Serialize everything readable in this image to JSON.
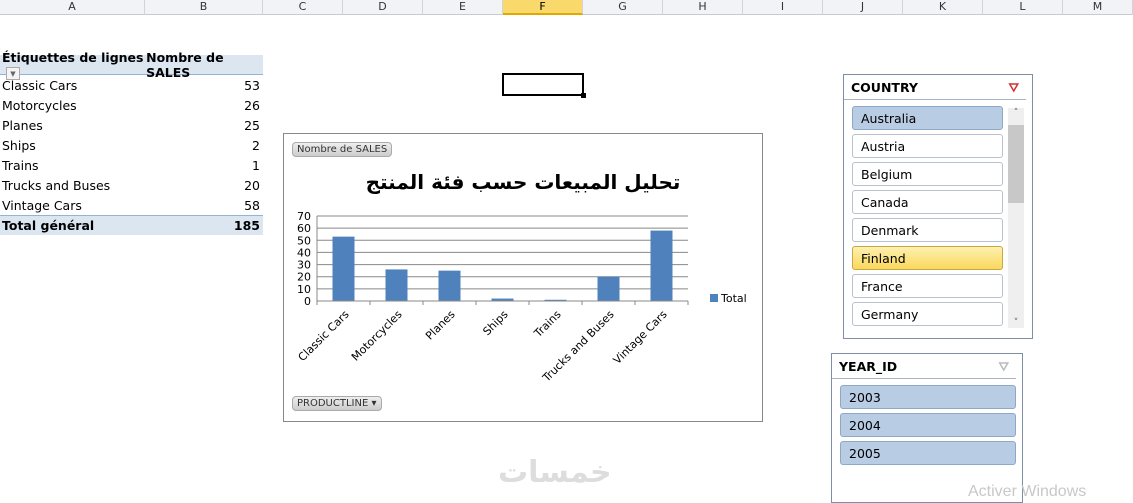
{
  "columns": [
    "A",
    "B",
    "C",
    "D",
    "E",
    "F",
    "G",
    "H",
    "I",
    "J",
    "K",
    "L",
    "M"
  ],
  "selected_column": "F",
  "pivot": {
    "header_label": "Étiquettes de lignes",
    "header_value": "Nombre de SALES",
    "rows": [
      {
        "label": "Classic Cars",
        "value": "53"
      },
      {
        "label": "Motorcycles",
        "value": "26"
      },
      {
        "label": "Planes",
        "value": "25"
      },
      {
        "label": "Ships",
        "value": "2"
      },
      {
        "label": "Trains",
        "value": "1"
      },
      {
        "label": "Trucks and Buses",
        "value": "20"
      },
      {
        "label": "Vintage Cars",
        "value": "58"
      }
    ],
    "total_label": "Total général",
    "total_value": "185"
  },
  "chart_buttons": {
    "values_field": "Nombre de SALES",
    "axis_field": "PRODUCTLINE"
  },
  "chart_data": {
    "type": "bar",
    "title": "تحليل المبيعات حسب فئة المنتج",
    "categories": [
      "Classic Cars",
      "Motorcycles",
      "Planes",
      "Ships",
      "Trains",
      "Trucks and Buses",
      "Vintage Cars"
    ],
    "series": [
      {
        "name": "Total",
        "values": [
          53,
          26,
          25,
          2,
          1,
          20,
          58
        ],
        "color": "#4f81bd"
      }
    ],
    "ylim": [
      0,
      70
    ],
    "yticks": [
      0,
      10,
      20,
      30,
      40,
      50,
      60,
      70
    ],
    "grid": true,
    "legend": "right"
  },
  "country_slicer": {
    "title": "COUNTRY",
    "items": [
      {
        "label": "Australia",
        "state": "on"
      },
      {
        "label": "Austria",
        "state": ""
      },
      {
        "label": "Belgium",
        "state": ""
      },
      {
        "label": "Canada",
        "state": ""
      },
      {
        "label": "Denmark",
        "state": ""
      },
      {
        "label": "Finland",
        "state": "hover"
      },
      {
        "label": "France",
        "state": ""
      },
      {
        "label": "Germany",
        "state": ""
      }
    ]
  },
  "year_slicer": {
    "title": "YEAR_ID",
    "items": [
      {
        "label": "2003",
        "state": "on"
      },
      {
        "label": "2004",
        "state": "on"
      },
      {
        "label": "2005",
        "state": "on"
      }
    ]
  },
  "watermark": "خمسات",
  "activation_text": "Activer Windows"
}
